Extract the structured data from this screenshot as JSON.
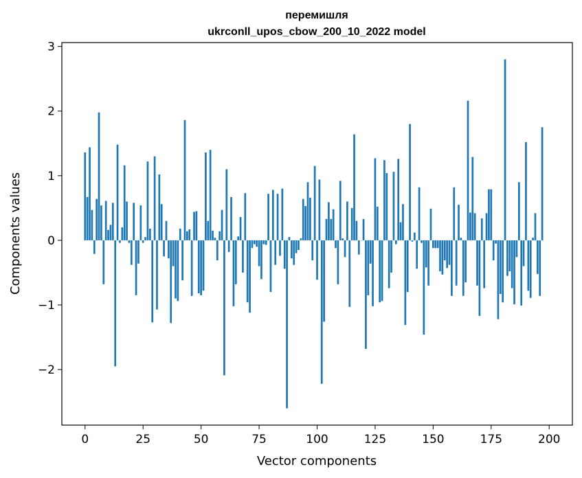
{
  "chart_data": {
    "type": "bar",
    "title": "перемишля",
    "subtitle": "ukrconll_upos_cbow_200_10_2022 model",
    "xlabel": "Vector components",
    "ylabel": "Components values",
    "bar_color": "#1f77b4",
    "xlim": [
      -10,
      210
    ],
    "ylim": [
      -2.86,
      3.06
    ],
    "xticks": [
      0,
      25,
      50,
      75,
      100,
      125,
      150,
      175,
      200
    ],
    "yticks": [
      -2,
      -1,
      0,
      1,
      2,
      3
    ],
    "xtick_labels": [
      "0",
      "25",
      "50",
      "75",
      "100",
      "125",
      "150",
      "175",
      "200"
    ],
    "ytick_labels": [
      "−2",
      "−1",
      "0",
      "1",
      "2",
      "3"
    ],
    "grid": false,
    "values": [
      1.36,
      0.67,
      1.44,
      0.47,
      -0.21,
      0.64,
      1.98,
      0.54,
      -0.68,
      0.61,
      0.16,
      0.24,
      0.58,
      -1.95,
      1.48,
      -0.04,
      0.2,
      1.16,
      0.6,
      -0.04,
      -0.38,
      0.58,
      -0.85,
      -0.36,
      0.54,
      -0.04,
      0.05,
      1.22,
      0.18,
      -1.27,
      1.3,
      -1.07,
      1.02,
      0.56,
      -0.25,
      0.3,
      -0.28,
      -1.28,
      -0.4,
      -0.9,
      -0.94,
      0.18,
      -0.62,
      1.86,
      0.14,
      0.17,
      -0.86,
      0.44,
      0.45,
      -0.82,
      -0.85,
      -0.78,
      1.36,
      0.3,
      1.4,
      0.15,
      0.04,
      -0.31,
      0.14,
      0.47,
      -2.09,
      1.1,
      -0.18,
      0.67,
      -1.02,
      -0.68,
      0.06,
      0.36,
      -0.5,
      0.73,
      -0.96,
      -1.12,
      -0.12,
      -0.06,
      -0.1,
      -0.4,
      -0.6,
      -0.06,
      -0.07,
      0.72,
      -0.8,
      0.78,
      -0.38,
      0.72,
      -0.24,
      0.8,
      -0.44,
      -2.6,
      0.05,
      -0.28,
      -0.38,
      -0.2,
      -0.15,
      0.03,
      0.64,
      0.53,
      0.9,
      0.66,
      -0.31,
      1.15,
      -0.61,
      0.94,
      -2.22,
      -1.26,
      0.33,
      0.59,
      0.33,
      0.48,
      -0.12,
      -0.68,
      0.92,
      0.03,
      -0.26,
      0.6,
      -1.03,
      0.5,
      1.64,
      0.3,
      -0.22,
      0.0,
      0.33,
      -1.68,
      -0.85,
      -0.36,
      -1.02,
      1.27,
      0.52,
      -0.96,
      -0.94,
      1.24,
      1.04,
      -0.74,
      -0.5,
      1.06,
      -0.06,
      1.26,
      0.28,
      0.56,
      -1.31,
      -0.8,
      1.8,
      -0.02,
      0.12,
      -0.44,
      0.82,
      -0.04,
      -1.46,
      -0.42,
      -0.7,
      0.49,
      -0.12,
      -0.12,
      -0.12,
      -0.48,
      -0.53,
      -0.31,
      -0.43,
      -0.38,
      -0.86,
      0.82,
      -0.7,
      0.55,
      0.04,
      -0.86,
      -0.65,
      2.16,
      0.43,
      1.29,
      0.42,
      -0.7,
      -1.17,
      0.34,
      -0.74,
      0.42,
      0.79,
      0.79,
      -0.31,
      -0.05,
      -1.22,
      -0.83,
      -0.96,
      2.8,
      -0.55,
      -0.48,
      -0.74,
      -0.99,
      -0.26,
      0.9,
      -1.01,
      -0.4,
      1.52,
      -0.78,
      -0.89,
      0.04,
      0.42,
      -0.52,
      -0.86,
      1.75
    ]
  }
}
